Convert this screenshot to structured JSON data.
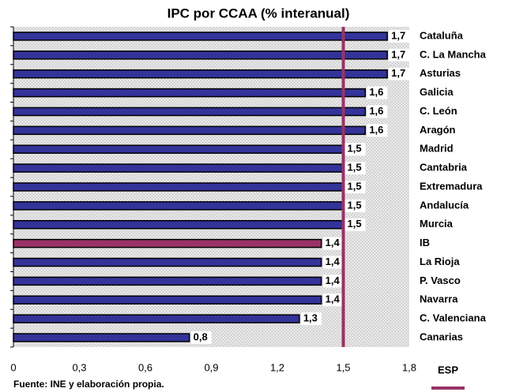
{
  "chart_data": {
    "type": "hbar",
    "title": "IPC por CCAA (% interanual)",
    "categories": [
      "Cataluña",
      "C. La Mancha",
      "Asturias",
      "Galicia",
      "C. León",
      "Aragón",
      "Madrid",
      "Cantabria",
      "Extremadura",
      "Andalucía",
      "Murcia",
      "IB",
      "La Rioja",
      "P. Vasco",
      "Navarra",
      "C. Valenciana",
      "Canarias"
    ],
    "values": [
      1.7,
      1.7,
      1.7,
      1.6,
      1.6,
      1.6,
      1.5,
      1.5,
      1.5,
      1.5,
      1.5,
      1.4,
      1.4,
      1.4,
      1.4,
      1.3,
      0.8
    ],
    "value_labels": [
      "1,7",
      "1,7",
      "1,7",
      "1,6",
      "1,6",
      "1,6",
      "1,5",
      "1,5",
      "1,5",
      "1,5",
      "1,5",
      "1,4",
      "1,4",
      "1,4",
      "1,4",
      "1,3",
      "0,8"
    ],
    "colors": [
      "#333399",
      "#333399",
      "#333399",
      "#333399",
      "#333399",
      "#333399",
      "#333399",
      "#333399",
      "#333399",
      "#333399",
      "#333399",
      "#993366",
      "#333399",
      "#333399",
      "#333399",
      "#333399",
      "#333399"
    ],
    "xlim": [
      0,
      1.8
    ],
    "xticks": [
      0,
      {
        "value": 0.3,
        "label": "0,3"
      },
      {
        "value": 0.6,
        "label": "0,6"
      },
      {
        "value": 0.9,
        "label": "0,9"
      },
      {
        "value": 1.2,
        "label": "1,2"
      },
      {
        "value": 1.5,
        "label": "1,5"
      },
      {
        "value": 1.8,
        "label": "1,8"
      }
    ],
    "reference": {
      "name": "ESP",
      "value": 1.5,
      "color": "#993366"
    },
    "source": "Fuente: INE y elaboración propia."
  }
}
